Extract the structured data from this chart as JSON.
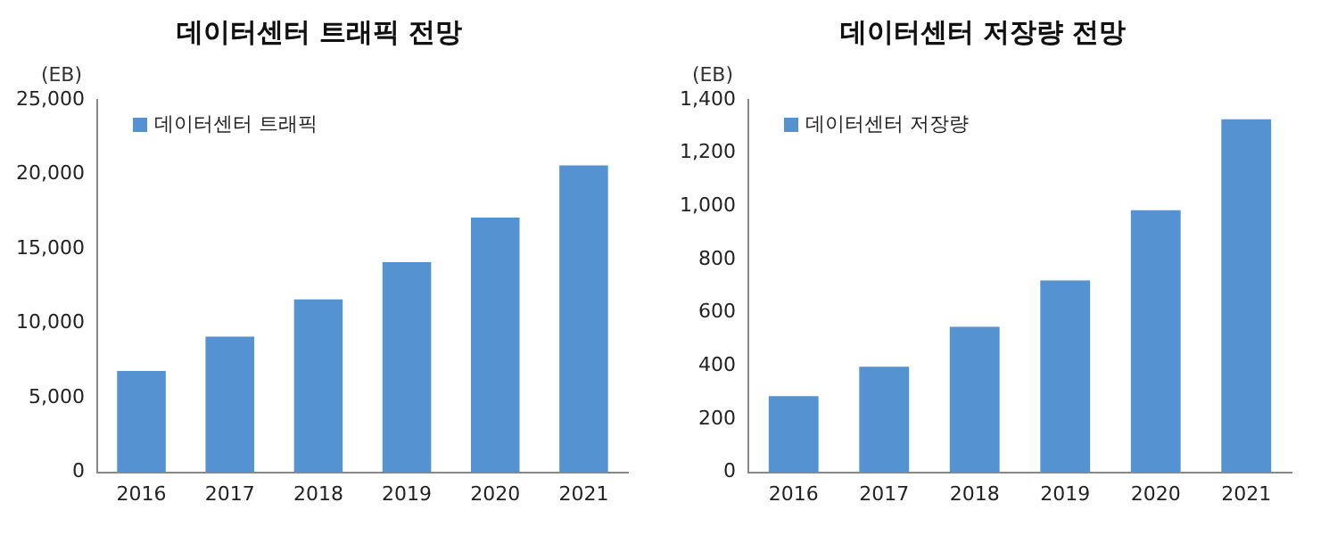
{
  "chart_data": [
    {
      "type": "bar",
      "title": "데이터센터 트래픽 전망",
      "ylabel": "(EB)",
      "categories": [
        "2016",
        "2017",
        "2018",
        "2019",
        "2020",
        "2021"
      ],
      "series": [
        {
          "name": "데이터센터 트래픽",
          "color": "#5592d2",
          "values": [
            6800,
            9100,
            11600,
            14100,
            17100,
            20600
          ]
        }
      ],
      "ylim": [
        0,
        25000
      ],
      "yticks": [
        0,
        {
          "value": 5000,
          "label": "5,000"
        },
        {
          "value": 10000,
          "label": "10,000"
        },
        {
          "value": 15000,
          "label": "15,000"
        },
        {
          "value": 20000,
          "label": "20,000"
        },
        {
          "value": 25000,
          "label": "25,000"
        }
      ],
      "grid": false,
      "legend": "top left"
    },
    {
      "type": "bar",
      "title": "데이터센터 저장량 전망",
      "ylabel": "(EB)",
      "categories": [
        "2016",
        "2017",
        "2018",
        "2019",
        "2020",
        "2021"
      ],
      "series": [
        {
          "name": "데이터센터 저장량",
          "color": "#5592d2",
          "values": [
            286,
            397,
            547,
            721,
            985,
            1327
          ]
        }
      ],
      "ylim": [
        0,
        1400
      ],
      "yticks": [
        0,
        200,
        400,
        600,
        800,
        {
          "value": 1000,
          "label": "1,000"
        },
        {
          "value": 1200,
          "label": "1,200"
        },
        {
          "value": 1400,
          "label": "1,400"
        }
      ],
      "grid": false,
      "legend": "top left"
    }
  ]
}
